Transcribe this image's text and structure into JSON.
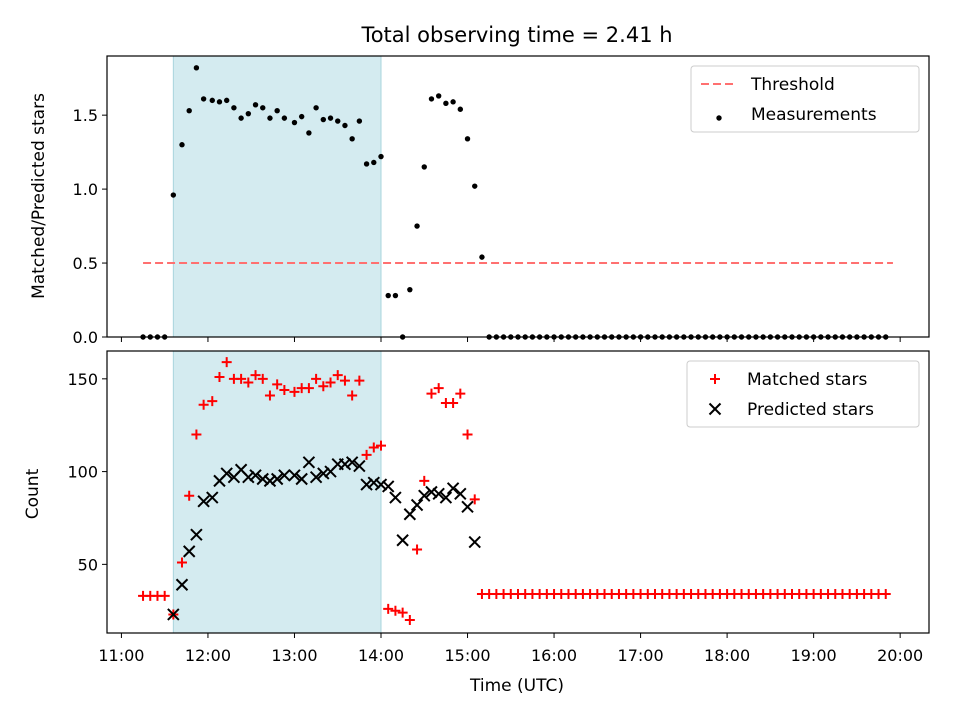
{
  "figure": {
    "title": "Total observing time = 2.41 h",
    "xlabel": "Time (UTC)",
    "xticks": [
      "11:00",
      "12:00",
      "13:00",
      "14:00",
      "15:00",
      "16:00",
      "17:00",
      "18:00",
      "19:00",
      "20:00"
    ],
    "highlight_color": "#d4ebf0",
    "highlight_edge": "#a9d4dd"
  },
  "chart_data": [
    {
      "type": "scatter",
      "panel": "top",
      "ylabel": "Matched/Predicted stars",
      "xlim": [
        "10:50",
        "20:20"
      ],
      "ylim": [
        0,
        1.9
      ],
      "yticks": [
        "0.0",
        "0.5",
        "1.0",
        "1.5"
      ],
      "ytick_values": [
        0,
        0.5,
        1.0,
        1.5
      ],
      "highlight_span": [
        "11:36",
        "14:00"
      ],
      "legend_position": "top-right",
      "threshold": {
        "name": "Threshold",
        "value": 0.5,
        "x_range": [
          "11:15",
          "19:55"
        ],
        "color": "#ff7070"
      },
      "series": [
        {
          "name": "Measurements",
          "color": "#000000",
          "marker": "dot",
          "points": [
            [
              "11:15",
              0
            ],
            [
              "11:20",
              0
            ],
            [
              "11:25",
              0
            ],
            [
              "11:30",
              0
            ],
            [
              "11:36",
              0.96
            ],
            [
              "11:42",
              1.3
            ],
            [
              "11:47",
              1.53
            ],
            [
              "11:52",
              1.82
            ],
            [
              "11:57",
              1.61
            ],
            [
              "12:03",
              1.6
            ],
            [
              "12:08",
              1.59
            ],
            [
              "12:13",
              1.6
            ],
            [
              "12:18",
              1.55
            ],
            [
              "12:23",
              1.48
            ],
            [
              "12:28",
              1.51
            ],
            [
              "12:33",
              1.57
            ],
            [
              "12:38",
              1.55
            ],
            [
              "12:43",
              1.48
            ],
            [
              "12:48",
              1.53
            ],
            [
              "12:53",
              1.48
            ],
            [
              "13:00",
              1.45
            ],
            [
              "13:05",
              1.49
            ],
            [
              "13:10",
              1.38
            ],
            [
              "13:15",
              1.55
            ],
            [
              "13:20",
              1.47
            ],
            [
              "13:25",
              1.48
            ],
            [
              "13:30",
              1.46
            ],
            [
              "13:35",
              1.43
            ],
            [
              "13:40",
              1.34
            ],
            [
              "13:45",
              1.46
            ],
            [
              "13:50",
              1.17
            ],
            [
              "13:55",
              1.18
            ],
            [
              "14:00",
              1.22
            ],
            [
              "14:05",
              0.28
            ],
            [
              "14:10",
              0.28
            ],
            [
              "14:15",
              0
            ],
            [
              "14:20",
              0.32
            ],
            [
              "14:25",
              0.75
            ],
            [
              "14:30",
              1.15
            ],
            [
              "14:35",
              1.61
            ],
            [
              "14:40",
              1.63
            ],
            [
              "14:45",
              1.58
            ],
            [
              "14:50",
              1.59
            ],
            [
              "14:55",
              1.54
            ],
            [
              "15:00",
              1.34
            ],
            [
              "15:05",
              1.02
            ],
            [
              "15:10",
              0.54
            ],
            [
              "15:15",
              0
            ],
            [
              "15:20",
              0
            ],
            [
              "15:25",
              0
            ],
            [
              "15:30",
              0
            ],
            [
              "15:35",
              0
            ],
            [
              "15:40",
              0
            ],
            [
              "15:45",
              0
            ],
            [
              "15:50",
              0
            ],
            [
              "15:55",
              0
            ],
            [
              "16:00",
              0
            ],
            [
              "16:05",
              0
            ],
            [
              "16:10",
              0
            ],
            [
              "16:15",
              0
            ],
            [
              "16:20",
              0
            ],
            [
              "16:25",
              0
            ],
            [
              "16:30",
              0
            ],
            [
              "16:35",
              0
            ],
            [
              "16:40",
              0
            ],
            [
              "16:45",
              0
            ],
            [
              "16:50",
              0
            ],
            [
              "16:55",
              0
            ],
            [
              "17:00",
              0
            ],
            [
              "17:05",
              0
            ],
            [
              "17:10",
              0
            ],
            [
              "17:15",
              0
            ],
            [
              "17:20",
              0
            ],
            [
              "17:25",
              0
            ],
            [
              "17:30",
              0
            ],
            [
              "17:35",
              0
            ],
            [
              "17:40",
              0
            ],
            [
              "17:45",
              0
            ],
            [
              "17:50",
              0
            ],
            [
              "17:55",
              0
            ],
            [
              "18:00",
              0
            ],
            [
              "18:05",
              0
            ],
            [
              "18:10",
              0
            ],
            [
              "18:15",
              0
            ],
            [
              "18:20",
              0
            ],
            [
              "18:25",
              0
            ],
            [
              "18:30",
              0
            ],
            [
              "18:35",
              0
            ],
            [
              "18:40",
              0
            ],
            [
              "18:45",
              0
            ],
            [
              "18:50",
              0
            ],
            [
              "18:55",
              0
            ],
            [
              "19:00",
              0
            ],
            [
              "19:05",
              0
            ],
            [
              "19:10",
              0
            ],
            [
              "19:15",
              0
            ],
            [
              "19:20",
              0
            ],
            [
              "19:25",
              0
            ],
            [
              "19:30",
              0
            ],
            [
              "19:35",
              0
            ],
            [
              "19:40",
              0
            ],
            [
              "19:45",
              0
            ],
            [
              "19:50",
              0
            ]
          ]
        }
      ]
    },
    {
      "type": "scatter",
      "panel": "bottom",
      "ylabel": "Count",
      "xlim": [
        "10:50",
        "20:20"
      ],
      "ylim": [
        13,
        165
      ],
      "yticks": [
        "50",
        "100",
        "150"
      ],
      "ytick_values": [
        50,
        100,
        150
      ],
      "highlight_span": [
        "11:36",
        "14:00"
      ],
      "legend_position": "top-right",
      "series": [
        {
          "name": "Matched stars",
          "color": "#ff0000",
          "marker": "plus",
          "points": [
            [
              "11:15",
              33
            ],
            [
              "11:20",
              33
            ],
            [
              "11:25",
              33
            ],
            [
              "11:30",
              33
            ],
            [
              "11:36",
              23
            ],
            [
              "11:42",
              51
            ],
            [
              "11:47",
              87
            ],
            [
              "11:52",
              120
            ],
            [
              "11:57",
              136
            ],
            [
              "12:03",
              138
            ],
            [
              "12:08",
              151
            ],
            [
              "12:13",
              159
            ],
            [
              "12:18",
              150
            ],
            [
              "12:23",
              150
            ],
            [
              "12:28",
              148
            ],
            [
              "12:33",
              152
            ],
            [
              "12:38",
              150
            ],
            [
              "12:43",
              141
            ],
            [
              "12:48",
              147
            ],
            [
              "12:53",
              144
            ],
            [
              "13:00",
              143
            ],
            [
              "13:05",
              145
            ],
            [
              "13:10",
              145
            ],
            [
              "13:15",
              150
            ],
            [
              "13:20",
              146
            ],
            [
              "13:25",
              148
            ],
            [
              "13:30",
              152
            ],
            [
              "13:35",
              149
            ],
            [
              "13:40",
              141
            ],
            [
              "13:45",
              149
            ],
            [
              "13:50",
              109
            ],
            [
              "13:55",
              113
            ],
            [
              "14:00",
              114
            ],
            [
              "14:05",
              26
            ],
            [
              "14:10",
              25
            ],
            [
              "14:15",
              24
            ],
            [
              "14:20",
              20
            ],
            [
              "14:25",
              58
            ],
            [
              "14:30",
              95
            ],
            [
              "14:35",
              142
            ],
            [
              "14:40",
              145
            ],
            [
              "14:45",
              137
            ],
            [
              "14:50",
              137
            ],
            [
              "14:55",
              142
            ],
            [
              "15:00",
              120
            ],
            [
              "15:05",
              85
            ],
            [
              "15:10",
              34
            ],
            [
              "15:15",
              34
            ],
            [
              "15:20",
              34
            ],
            [
              "15:25",
              34
            ],
            [
              "15:30",
              34
            ],
            [
              "15:35",
              34
            ],
            [
              "15:40",
              34
            ],
            [
              "15:45",
              34
            ],
            [
              "15:50",
              34
            ],
            [
              "15:55",
              34
            ],
            [
              "16:00",
              34
            ],
            [
              "16:05",
              34
            ],
            [
              "16:10",
              34
            ],
            [
              "16:15",
              34
            ],
            [
              "16:20",
              34
            ],
            [
              "16:25",
              34
            ],
            [
              "16:30",
              34
            ],
            [
              "16:35",
              34
            ],
            [
              "16:40",
              34
            ],
            [
              "16:45",
              34
            ],
            [
              "16:50",
              34
            ],
            [
              "16:55",
              34
            ],
            [
              "17:00",
              34
            ],
            [
              "17:05",
              34
            ],
            [
              "17:10",
              34
            ],
            [
              "17:15",
              34
            ],
            [
              "17:20",
              34
            ],
            [
              "17:25",
              34
            ],
            [
              "17:30",
              34
            ],
            [
              "17:35",
              34
            ],
            [
              "17:40",
              34
            ],
            [
              "17:45",
              34
            ],
            [
              "17:50",
              34
            ],
            [
              "17:55",
              34
            ],
            [
              "18:00",
              34
            ],
            [
              "18:05",
              34
            ],
            [
              "18:10",
              34
            ],
            [
              "18:15",
              34
            ],
            [
              "18:20",
              34
            ],
            [
              "18:25",
              34
            ],
            [
              "18:30",
              34
            ],
            [
              "18:35",
              34
            ],
            [
              "18:40",
              34
            ],
            [
              "18:45",
              34
            ],
            [
              "18:50",
              34
            ],
            [
              "18:55",
              34
            ],
            [
              "19:00",
              34
            ],
            [
              "19:05",
              34
            ],
            [
              "19:10",
              34
            ],
            [
              "19:15",
              34
            ],
            [
              "19:20",
              34
            ],
            [
              "19:25",
              34
            ],
            [
              "19:30",
              34
            ],
            [
              "19:35",
              34
            ],
            [
              "19:40",
              34
            ],
            [
              "19:45",
              34
            ],
            [
              "19:50",
              34
            ]
          ]
        },
        {
          "name": "Predicted stars",
          "color": "#000000",
          "marker": "x",
          "points": [
            [
              "11:36",
              23
            ],
            [
              "11:42",
              39
            ],
            [
              "11:47",
              57
            ],
            [
              "11:52",
              66
            ],
            [
              "11:57",
              84
            ],
            [
              "12:03",
              86
            ],
            [
              "12:08",
              95
            ],
            [
              "12:13",
              99
            ],
            [
              "12:18",
              97
            ],
            [
              "12:23",
              101
            ],
            [
              "12:28",
              97
            ],
            [
              "12:33",
              98
            ],
            [
              "12:38",
              96
            ],
            [
              "12:43",
              95
            ],
            [
              "12:48",
              96
            ],
            [
              "12:53",
              98
            ],
            [
              "13:00",
              98
            ],
            [
              "13:05",
              96
            ],
            [
              "13:10",
              105
            ],
            [
              "13:15",
              97
            ],
            [
              "13:20",
              99
            ],
            [
              "13:25",
              100
            ],
            [
              "13:30",
              104
            ],
            [
              "13:35",
              104
            ],
            [
              "13:40",
              105
            ],
            [
              "13:45",
              103
            ],
            [
              "13:50",
              93
            ],
            [
              "13:55",
              94
            ],
            [
              "14:00",
              93
            ],
            [
              "14:05",
              92
            ],
            [
              "14:10",
              86
            ],
            [
              "14:15",
              63
            ],
            [
              "14:20",
              77
            ],
            [
              "14:25",
              82
            ],
            [
              "14:30",
              87
            ],
            [
              "14:35",
              89
            ],
            [
              "14:40",
              88
            ],
            [
              "14:45",
              86
            ],
            [
              "14:50",
              91
            ],
            [
              "14:55",
              88
            ],
            [
              "15:00",
              81
            ],
            [
              "15:05",
              62
            ]
          ]
        }
      ]
    }
  ]
}
